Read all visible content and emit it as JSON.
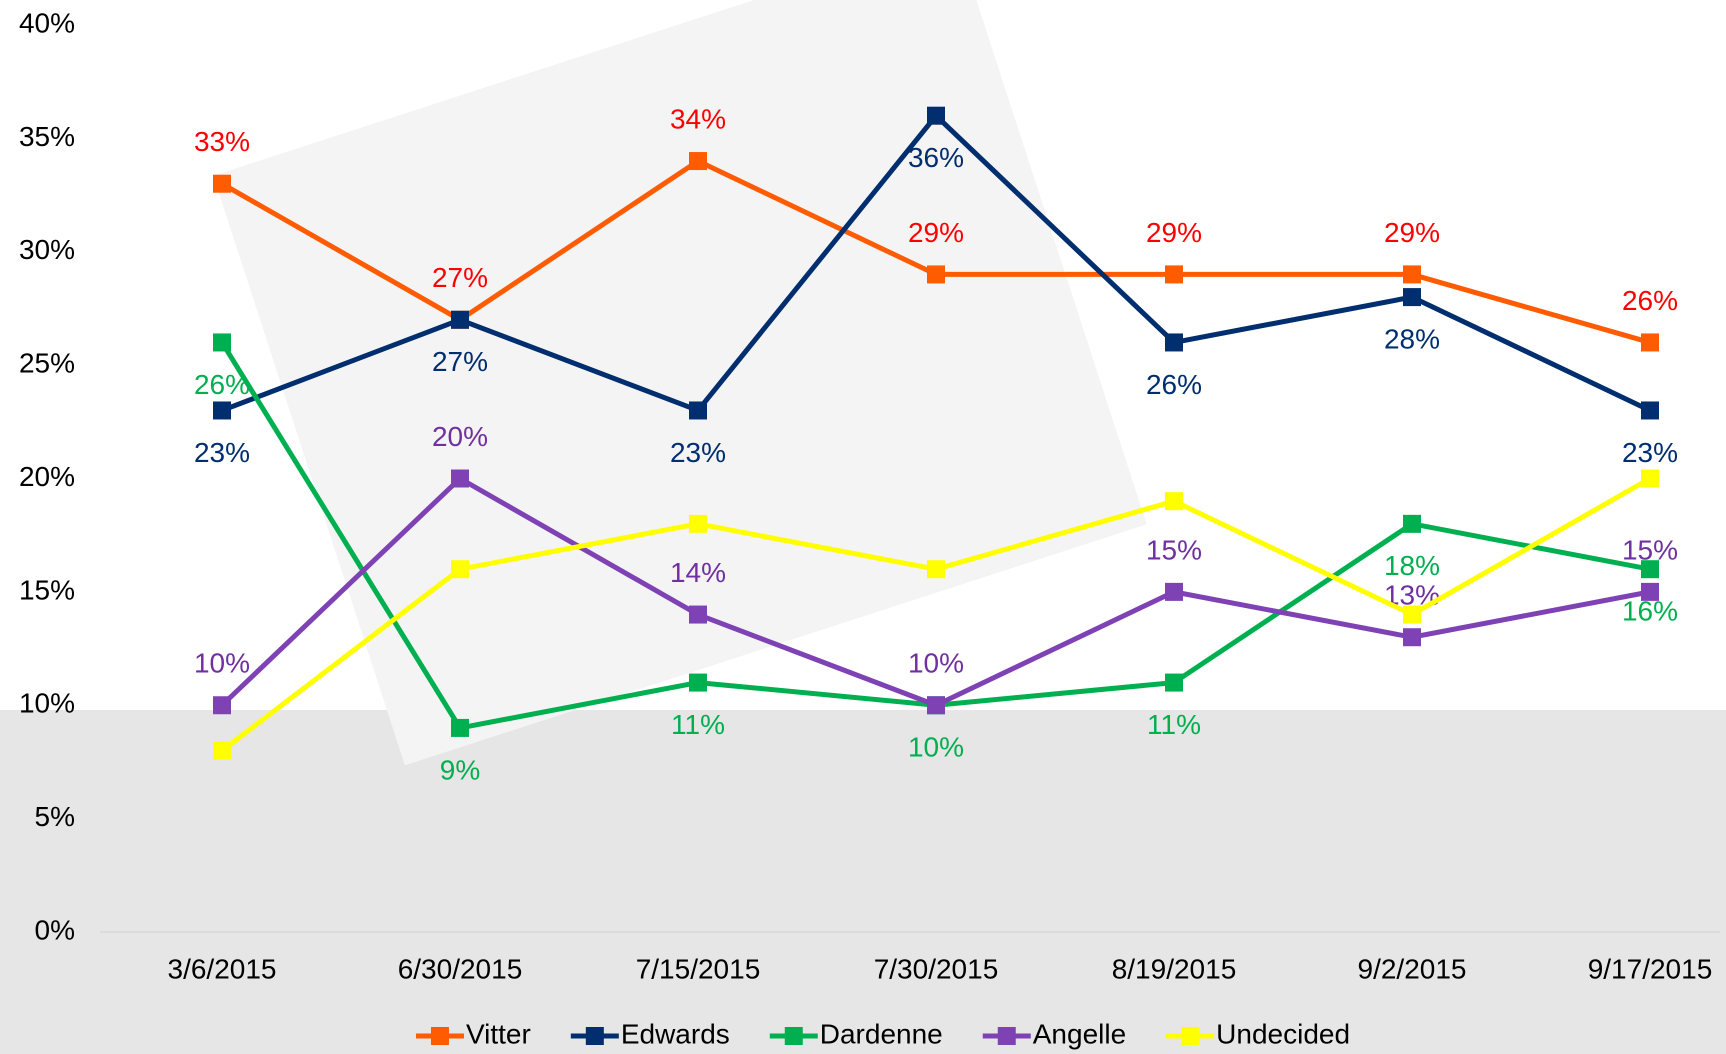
{
  "chart_data": {
    "type": "line",
    "categories": [
      "3/6/2015",
      "6/30/2015",
      "7/15/2015",
      "7/30/2015",
      "8/19/2015",
      "9/2/2015",
      "9/17/2015"
    ],
    "series": [
      {
        "name": "Vitter",
        "color": "#ff5b00",
        "label_color": "#ff0000",
        "values": [
          33,
          27,
          34,
          29,
          29,
          29,
          26
        ],
        "value_labels": [
          "33%",
          "27%",
          "34%",
          "29%",
          "29%",
          "29%",
          "26%"
        ]
      },
      {
        "name": "Edwards",
        "color": "#002e6e",
        "label_color": "#002e6e",
        "values": [
          23,
          27,
          23,
          36,
          26,
          28,
          23
        ],
        "value_labels": [
          "23%",
          "27%",
          "23%",
          "36%",
          "26%",
          "28%",
          "23%"
        ]
      },
      {
        "name": "Dardenne",
        "color": "#00b050",
        "label_color": "#00b050",
        "values": [
          26,
          9,
          11,
          10,
          11,
          18,
          16
        ],
        "value_labels": [
          "26%",
          "9%",
          "11%",
          "10%",
          "11%",
          "18%",
          "16%"
        ]
      },
      {
        "name": "Angelle",
        "color": "#7f42b5",
        "label_color": "#7030a0",
        "values": [
          10,
          20,
          14,
          10,
          15,
          13,
          15
        ],
        "value_labels": [
          "10%",
          "20%",
          "14%",
          "10%",
          "15%",
          "13%",
          "15%"
        ]
      },
      {
        "name": "Undecided",
        "color": "#ffff00",
        "values": [
          8,
          16,
          18,
          16,
          19,
          14,
          20
        ]
      }
    ],
    "ylim": [
      0,
      40
    ],
    "yticks": [
      {
        "value": 0,
        "label": "0%"
      },
      {
        "value": 5,
        "label": "5%"
      },
      {
        "value": 10,
        "label": "10%"
      },
      {
        "value": 15,
        "label": "15%"
      },
      {
        "value": 20,
        "label": "20%"
      },
      {
        "value": 25,
        "label": "25%"
      },
      {
        "value": 30,
        "label": "30%"
      },
      {
        "value": 35,
        "label": "35%"
      },
      {
        "value": 40,
        "label": "40%"
      }
    ],
    "grid": false,
    "legend": "bottom"
  }
}
